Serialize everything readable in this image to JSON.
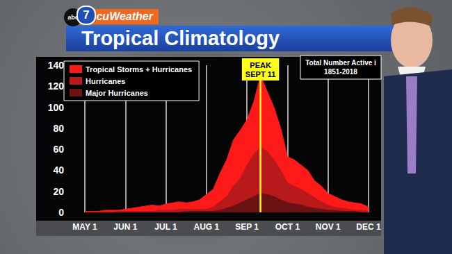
{
  "header": {
    "logo": [
      "abc",
      "7"
    ],
    "brand": "AccuWeather"
  },
  "chart_data": {
    "type": "area",
    "title": "Tropical Climatology",
    "categories": [
      "MAY 1",
      null,
      null,
      null,
      null,
      null,
      "JUN 1",
      null,
      null,
      null,
      null,
      null,
      "JUL 1",
      null,
      null,
      null,
      null,
      null,
      "AUG 1",
      null,
      null,
      null,
      null,
      null,
      "SEP 1",
      null,
      null,
      null,
      null,
      null,
      "OCT 1",
      null,
      null,
      null,
      null,
      null,
      "NOV 1",
      null,
      null,
      null,
      null,
      null,
      "DEC 1"
    ],
    "series": [
      {
        "name": "Tropical Storms + Hurricanes",
        "color": "#ff1a1a",
        "values": [
          1,
          1,
          1,
          2,
          2,
          2,
          3,
          4,
          5,
          6,
          7,
          6,
          8,
          9,
          10,
          9,
          10,
          12,
          17,
          22,
          37,
          50,
          69,
          78,
          88,
          105,
          130,
          115,
          100,
          80,
          53,
          50,
          45,
          40,
          30,
          25,
          18,
          15,
          12,
          10,
          9,
          8,
          5
        ]
      },
      {
        "name": "Hurricanes",
        "color": "#b8191a",
        "values": [
          0,
          0,
          0,
          0,
          0,
          1,
          1,
          1,
          1,
          1,
          1,
          2,
          2,
          2,
          3,
          3,
          3,
          3,
          3,
          5,
          10,
          15,
          25,
          32,
          45,
          55,
          62,
          58,
          50,
          40,
          28,
          25,
          22,
          18,
          14,
          10,
          7,
          5,
          4,
          3,
          2,
          2,
          1
        ]
      },
      {
        "name": "Major Hurricanes",
        "color": "#6a1214",
        "values": [
          0,
          0,
          0,
          0,
          0,
          0,
          0,
          0,
          0,
          0,
          0,
          0,
          0,
          0,
          0,
          1,
          1,
          1,
          1,
          1,
          2,
          4,
          6,
          9,
          12,
          15,
          18,
          17,
          15,
          12,
          9,
          8,
          7,
          5,
          4,
          3,
          2,
          2,
          1,
          1,
          1,
          0,
          0
        ]
      }
    ],
    "ylim": [
      0,
      140
    ],
    "yticks": [
      0,
      20,
      40,
      60,
      80,
      100,
      120,
      140
    ],
    "grid": "x",
    "stacked": false,
    "legend": "upper left",
    "annotations": [
      {
        "text": "PEAK\nSEPT 11",
        "color": "#ffff1a"
      },
      {
        "text": "Total Number Active i\n1851-2018"
      }
    ]
  }
}
